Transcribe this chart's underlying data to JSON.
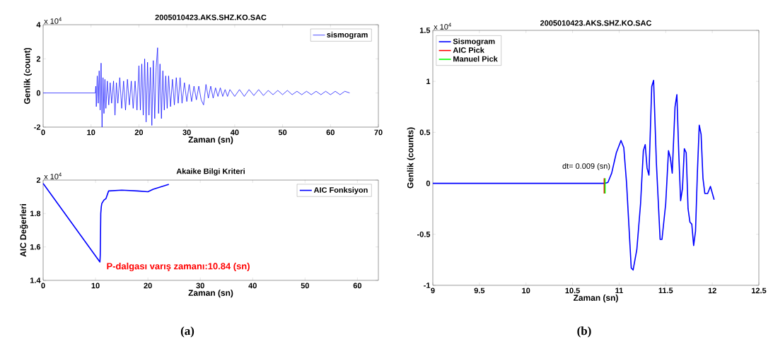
{
  "chart_data": [
    {
      "type": "line",
      "title": "2005010423.AKS.SHZ.KO.SAC",
      "xlabel": "Zaman (sn)",
      "ylabel": "Genlik (count)",
      "xlim": [
        0,
        70
      ],
      "xticks": [
        0,
        10,
        20,
        30,
        40,
        50,
        60,
        70
      ],
      "ylim": [
        -2,
        4
      ],
      "yticks": [
        -2,
        0,
        2,
        4
      ],
      "legend": "top right",
      "annotations": [
        "x 10$^{4}$"
      ],
      "series": [
        {
          "name": "sismogram",
          "color": "#0000ff",
          "x": [
            0,
            5,
            10.9,
            11.0,
            11.1,
            11.3,
            11.5,
            11.7,
            11.9,
            12.1,
            12.3,
            12.5,
            12.7,
            12.9,
            13.1,
            13.4,
            13.7,
            14.0,
            14.3,
            14.7,
            15.0,
            15.3,
            15.6,
            16.0,
            16.4,
            16.8,
            17.2,
            17.6,
            18.0,
            18.4,
            18.8,
            19.2,
            19.6,
            20.0,
            20.3,
            20.6,
            20.9,
            21.2,
            21.5,
            21.8,
            22.1,
            22.4,
            22.7,
            23.0,
            23.3,
            23.6,
            23.9,
            24.1,
            24.4,
            24.7,
            25.0,
            25.3,
            25.6,
            25.9,
            26.2,
            26.6,
            27.0,
            27.4,
            27.8,
            28.2,
            28.6,
            29.0,
            29.5,
            30.0,
            30.5,
            31.0,
            31.5,
            32.0,
            32.5,
            33.0,
            33.5,
            34.0,
            34.5,
            35.0,
            35.5,
            36.0,
            36.5,
            37.0,
            37.5,
            38.0,
            38.5,
            39.0,
            40,
            41,
            42,
            43,
            44,
            45,
            46,
            47,
            48,
            49,
            50,
            51,
            52,
            53,
            54,
            55,
            56,
            57,
            58,
            59,
            60,
            61,
            62,
            63,
            64
          ],
          "values": [
            0,
            0,
            0,
            0.4,
            -0.8,
            1.0,
            -0.6,
            1.3,
            -1.0,
            1.75,
            -2.0,
            0.9,
            -1.2,
            0.8,
            -0.9,
            0.7,
            -0.7,
            0.6,
            -0.6,
            0.7,
            -1.3,
            0.6,
            -0.6,
            0.9,
            -0.9,
            0.7,
            -1.0,
            0.8,
            -0.7,
            0.7,
            -0.9,
            0.7,
            -1.0,
            1.6,
            -1.0,
            1.7,
            -1.3,
            2.0,
            -1.7,
            1.8,
            -1.3,
            1.5,
            -1.9,
            1.9,
            -1.5,
            1.5,
            2.65,
            -1.2,
            1.7,
            -1.5,
            1.3,
            -1.0,
            1.0,
            -0.9,
            1.0,
            -0.8,
            0.8,
            -0.7,
            0.9,
            -0.6,
            0.9,
            -0.6,
            0.6,
            -0.5,
            0.5,
            -0.5,
            0.4,
            -0.4,
            0.4,
            -0.4,
            -0.7,
            0.5,
            -0.3,
            0.4,
            -0.3,
            0.3,
            -0.2,
            0.3,
            -0.2,
            0.2,
            -0.2,
            0.2,
            -0.2,
            0.2,
            -0.2,
            0.2,
            -0.15,
            0.2,
            -0.15,
            0.15,
            -0.1,
            0.15,
            -0.1,
            0.15,
            -0.1,
            0.1,
            -0.1,
            0.1,
            -0.1,
            0.1,
            -0.1,
            0.1,
            -0.1,
            0.1,
            -0.1,
            0.1,
            0.0
          ]
        }
      ]
    },
    {
      "type": "line",
      "title": "Akaike Bilgi Kriteri",
      "xlabel": "Zaman (sn)",
      "ylabel": "AIC Değerleri",
      "xlim": [
        0,
        64
      ],
      "xticks": [
        0,
        10,
        20,
        30,
        40,
        50,
        60
      ],
      "ylim": [
        1.4,
        2
      ],
      "yticks": [
        1.4,
        1.6,
        1.8,
        2
      ],
      "legend": "top right",
      "annotations": [
        "x 10$^{4}$",
        "P-dalgası varış zamanı:10.84 (sn)",
        "(a)"
      ],
      "series": [
        {
          "name": "AIC Fonksiyon",
          "color": "#0000ff",
          "x": [
            0,
            10.84,
            10.9,
            11.0,
            11.1,
            11.2,
            11.6,
            12.0,
            12.5,
            15,
            18,
            20,
            21,
            22,
            23,
            24
          ],
          "values": [
            1.98,
            1.51,
            1.55,
            1.8,
            1.84,
            1.86,
            1.88,
            1.89,
            1.935,
            1.94,
            1.935,
            1.93,
            1.945,
            1.955,
            1.965,
            1.975
          ]
        }
      ]
    },
    {
      "type": "line",
      "title": "2005010423.AKS.SHZ.KO.SAC",
      "xlabel": "Zaman (sn)",
      "ylabel": "Genlik (counts)",
      "xlim": [
        9,
        12.5
      ],
      "xticks": [
        9,
        9.5,
        10,
        10.5,
        11,
        11.5,
        12,
        12.5
      ],
      "ylim": [
        -1,
        1.5
      ],
      "yticks": [
        -1,
        -0.5,
        0,
        0.5,
        1,
        1.5
      ],
      "legend": "top left",
      "annotations": [
        "x 10$^{4}$",
        "dt= 0.009 (sn)",
        "(b)"
      ],
      "series": [
        {
          "name": "Sismogram",
          "color": "#0000ff",
          "x": [
            9,
            9.5,
            10,
            10.5,
            10.85,
            10.88,
            10.92,
            10.97,
            11.02,
            11.05,
            11.08,
            11.13,
            11.15,
            11.19,
            11.23,
            11.26,
            11.28,
            11.3,
            11.32,
            11.35,
            11.37,
            11.4,
            11.44,
            11.46,
            11.5,
            11.53,
            11.55,
            11.57,
            11.6,
            11.62,
            11.64,
            11.66,
            11.68,
            11.7,
            11.72,
            11.74,
            11.76,
            11.78,
            11.8,
            11.82,
            11.84,
            11.86,
            11.88,
            11.9,
            11.92,
            11.95,
            11.98,
            12.02
          ],
          "values": [
            0,
            0,
            0,
            0,
            0,
            0.01,
            0.1,
            0.3,
            0.42,
            0.35,
            0,
            -0.83,
            -0.85,
            -0.65,
            -0.2,
            0.32,
            0.38,
            0.15,
            0.08,
            0.95,
            1.01,
            0.2,
            -0.55,
            -0.55,
            -0.2,
            0.32,
            0.25,
            0.1,
            0.75,
            0.87,
            0.3,
            -0.17,
            -0.05,
            0.34,
            0.3,
            -0.25,
            -0.38,
            -0.4,
            -0.61,
            -0.47,
            0.1,
            0.57,
            0.48,
            0.05,
            -0.1,
            -0.1,
            -0.03,
            -0.16
          ]
        },
        {
          "name": "AIC Pick",
          "color": "#ff0000",
          "x": [
            10.84,
            10.84
          ],
          "values": [
            -0.1,
            0.05
          ]
        },
        {
          "name": "Manuel Pick",
          "color": "#00ff00",
          "x": [
            10.849,
            10.849
          ],
          "values": [
            -0.1,
            0.05
          ]
        }
      ]
    }
  ]
}
